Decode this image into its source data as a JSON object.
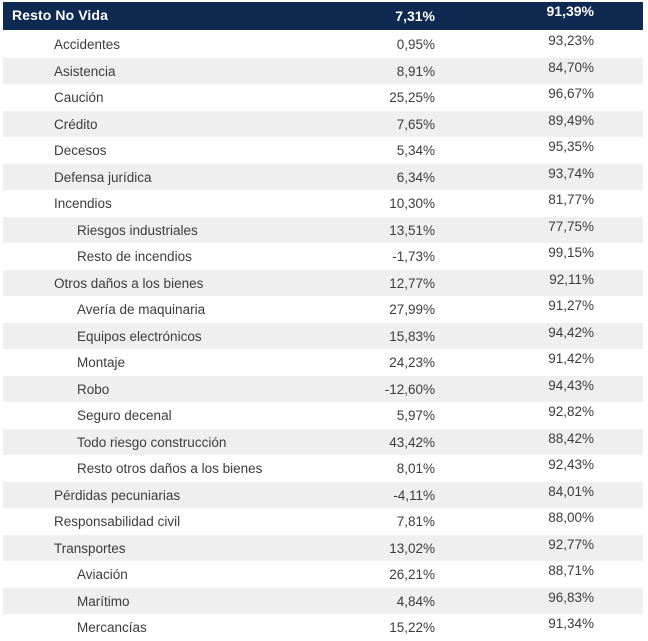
{
  "colors": {
    "header_bg": "#0E2952",
    "alt_row_bg": "#EFEFEF",
    "text": "#3C3C3C",
    "header_text": "#FFFFFF"
  },
  "chart_data": {
    "type": "table",
    "title": "Resto No Vida",
    "header_row": {
      "label": "Resto No Vida",
      "values": [
        "7,31%",
        "91,39%"
      ]
    },
    "rows": [
      {
        "label": "Accidentes",
        "level": 1,
        "values": [
          "0,95%",
          "93,23%"
        ]
      },
      {
        "label": "Asistencia",
        "level": 1,
        "values": [
          "8,91%",
          "84,70%"
        ]
      },
      {
        "label": "Caución",
        "level": 1,
        "values": [
          "25,25%",
          "96,67%"
        ]
      },
      {
        "label": "Crédito",
        "level": 1,
        "values": [
          "7,65%",
          "89,49%"
        ]
      },
      {
        "label": "Decesos",
        "level": 1,
        "values": [
          "5,34%",
          "95,35%"
        ]
      },
      {
        "label": "Defensa jurídica",
        "level": 1,
        "values": [
          "6,34%",
          "93,74%"
        ]
      },
      {
        "label": "Incendios",
        "level": 1,
        "values": [
          "10,30%",
          "81,77%"
        ]
      },
      {
        "label": "Riesgos industriales",
        "level": 2,
        "values": [
          "13,51%",
          "77,75%"
        ]
      },
      {
        "label": "Resto de incendios",
        "level": 2,
        "values": [
          "-1,73%",
          "99,15%"
        ]
      },
      {
        "label": "Otros daños a los bienes",
        "level": 1,
        "values": [
          "12,77%",
          "92,11%"
        ]
      },
      {
        "label": "Avería de maquinaria",
        "level": 2,
        "values": [
          "27,99%",
          "91,27%"
        ]
      },
      {
        "label": "Equipos electrónicos",
        "level": 2,
        "values": [
          "15,83%",
          "94,42%"
        ]
      },
      {
        "label": "Montaje",
        "level": 2,
        "values": [
          "24,23%",
          "91,42%"
        ]
      },
      {
        "label": "Robo",
        "level": 2,
        "values": [
          "-12,60%",
          "94,43%"
        ]
      },
      {
        "label": "Seguro decenal",
        "level": 2,
        "values": [
          "5,97%",
          "92,82%"
        ]
      },
      {
        "label": "Todo riesgo construcción",
        "level": 2,
        "values": [
          "43,42%",
          "88,42%"
        ]
      },
      {
        "label": "Resto otros daños a los bienes",
        "level": 2,
        "values": [
          "8,01%",
          "92,43%"
        ]
      },
      {
        "label": "Pérdidas pecuniarias",
        "level": 1,
        "values": [
          "-4,11%",
          "84,01%"
        ]
      },
      {
        "label": "Responsabilidad civil",
        "level": 1,
        "values": [
          "7,81%",
          "88,00%"
        ]
      },
      {
        "label": "Transportes",
        "level": 1,
        "values": [
          "13,02%",
          "92,77%"
        ]
      },
      {
        "label": "Aviación",
        "level": 2,
        "values": [
          "26,21%",
          "88,71%"
        ]
      },
      {
        "label": "Marítimo",
        "level": 2,
        "values": [
          "4,84%",
          "96,83%"
        ]
      },
      {
        "label": "Mercancías",
        "level": 2,
        "values": [
          "15,22%",
          "91,34%"
        ]
      }
    ]
  }
}
